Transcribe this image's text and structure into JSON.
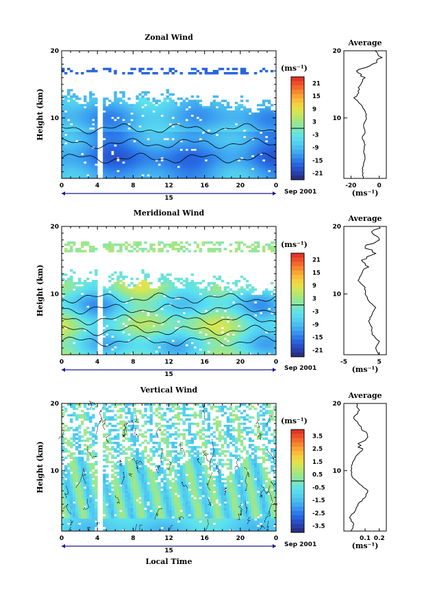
{
  "chart_data": [
    {
      "type": "heatmap",
      "title": "Zonal Wind",
      "ylabel": "Height (km)",
      "x_ticks": [
        "0",
        "4",
        "8",
        "12",
        "16",
        "20",
        "0"
      ],
      "y_ticks": [
        "10",
        "20"
      ],
      "day_label": "15",
      "date_label": "Sep 2001",
      "xlim": [
        0,
        24
      ],
      "ylim": [
        1,
        20
      ],
      "colorbar": {
        "unit": "(ms⁻¹)",
        "ticks": [
          "21",
          "15",
          "9",
          "3",
          "-3",
          "-9",
          "-15",
          "-21"
        ],
        "range": [
          -24,
          24
        ]
      },
      "data_extent_km": [
        1,
        12.5
      ],
      "upper_layer_km": [
        16.5,
        17.5
      ],
      "gap_hour": 4.3,
      "average": {
        "title": "Average",
        "xlabel": "(ms⁻¹)",
        "x_ticks": [
          "-20",
          "0"
        ],
        "y_ticks": [
          "10",
          "20"
        ],
        "xlim": [
          -25,
          5
        ],
        "profile": [
          [
            1,
            -11
          ],
          [
            2,
            -12
          ],
          [
            3,
            -11
          ],
          [
            4,
            -10
          ],
          [
            5,
            -11
          ],
          [
            6,
            -10
          ],
          [
            7,
            -12
          ],
          [
            8,
            -10
          ],
          [
            9,
            -11
          ],
          [
            10,
            -9
          ],
          [
            11,
            -10
          ],
          [
            12,
            -13
          ],
          [
            13,
            -18
          ],
          [
            14,
            -15
          ],
          [
            15,
            -13
          ],
          [
            16,
            -10
          ],
          [
            17,
            -16
          ],
          [
            18,
            -5
          ],
          [
            19,
            2
          ],
          [
            20,
            -3
          ]
        ]
      }
    },
    {
      "type": "heatmap",
      "title": "Meridional Wind",
      "ylabel": "Height (km)",
      "x_ticks": [
        "0",
        "4",
        "8",
        "12",
        "16",
        "20",
        "0"
      ],
      "y_ticks": [
        "10",
        "20"
      ],
      "day_label": "15",
      "date_label": "Sep 2001",
      "xlim": [
        0,
        24
      ],
      "ylim": [
        1,
        20
      ],
      "colorbar": {
        "unit": "(ms⁻¹)",
        "ticks": [
          "21",
          "15",
          "9",
          "3",
          "-3",
          "-9",
          "-15",
          "-21"
        ],
        "range": [
          -24,
          24
        ]
      },
      "data_extent_km": [
        1,
        11.5
      ],
      "upper_layer_km": [
        16.2,
        17.8
      ],
      "gap_hour": 4.3,
      "average": {
        "title": "Average",
        "xlabel": "(ms⁻¹)",
        "x_ticks": [
          "-5",
          "5"
        ],
        "y_ticks": [
          "10",
          "20"
        ],
        "xlim": [
          -5,
          7
        ],
        "profile": [
          [
            1,
            5
          ],
          [
            2,
            4
          ],
          [
            3,
            5
          ],
          [
            4,
            3
          ],
          [
            5,
            3
          ],
          [
            6,
            2
          ],
          [
            7,
            3
          ],
          [
            8,
            4
          ],
          [
            9,
            2
          ],
          [
            10,
            1
          ],
          [
            11,
            1
          ],
          [
            12,
            -1
          ],
          [
            13,
            0
          ],
          [
            14,
            2
          ],
          [
            15,
            0
          ],
          [
            16,
            4
          ],
          [
            17,
            1
          ],
          [
            18,
            5
          ],
          [
            19,
            3
          ],
          [
            20,
            5
          ]
        ]
      }
    },
    {
      "type": "heatmap",
      "title": "Vertical Wind",
      "ylabel": "Height (km)",
      "xlabel": "Local Time",
      "x_ticks": [
        "0",
        "4",
        "8",
        "12",
        "16",
        "20",
        "0"
      ],
      "y_ticks": [
        "10",
        "20"
      ],
      "day_label": "15",
      "date_label": "Sep 2001",
      "xlim": [
        0,
        24
      ],
      "ylim": [
        1,
        20
      ],
      "colorbar": {
        "unit": "(ms⁻¹)",
        "ticks": [
          "3.5",
          "2.5",
          "1.5",
          "0.5",
          "-0.5",
          "-1.5",
          "-2.5",
          "-3.5"
        ],
        "range": [
          -4,
          4
        ]
      },
      "data_extent_km": [
        1,
        20
      ],
      "gap_hour": 4.3,
      "average": {
        "title": "Average",
        "xlabel": "(ms⁻¹)",
        "x_ticks": [
          "0.1",
          "0.2"
        ],
        "y_ticks": [
          "10",
          "20"
        ],
        "xlim": [
          -0.05,
          0.25
        ],
        "profile": [
          [
            1,
            0
          ],
          [
            2,
            0.02
          ],
          [
            3,
            -0.01
          ],
          [
            4,
            0.03
          ],
          [
            5,
            0.05
          ],
          [
            6,
            0.1
          ],
          [
            7,
            0.12
          ],
          [
            8,
            0.06
          ],
          [
            9,
            0.01
          ],
          [
            10,
            0.0
          ],
          [
            11,
            0.01
          ],
          [
            12,
            0.03
          ],
          [
            13,
            0.08
          ],
          [
            14,
            0.05
          ],
          [
            15,
            0.12
          ],
          [
            16,
            0.08
          ],
          [
            17,
            0.05
          ],
          [
            18,
            0.02
          ],
          [
            19,
            0.06
          ],
          [
            20,
            0.04
          ]
        ]
      }
    }
  ]
}
